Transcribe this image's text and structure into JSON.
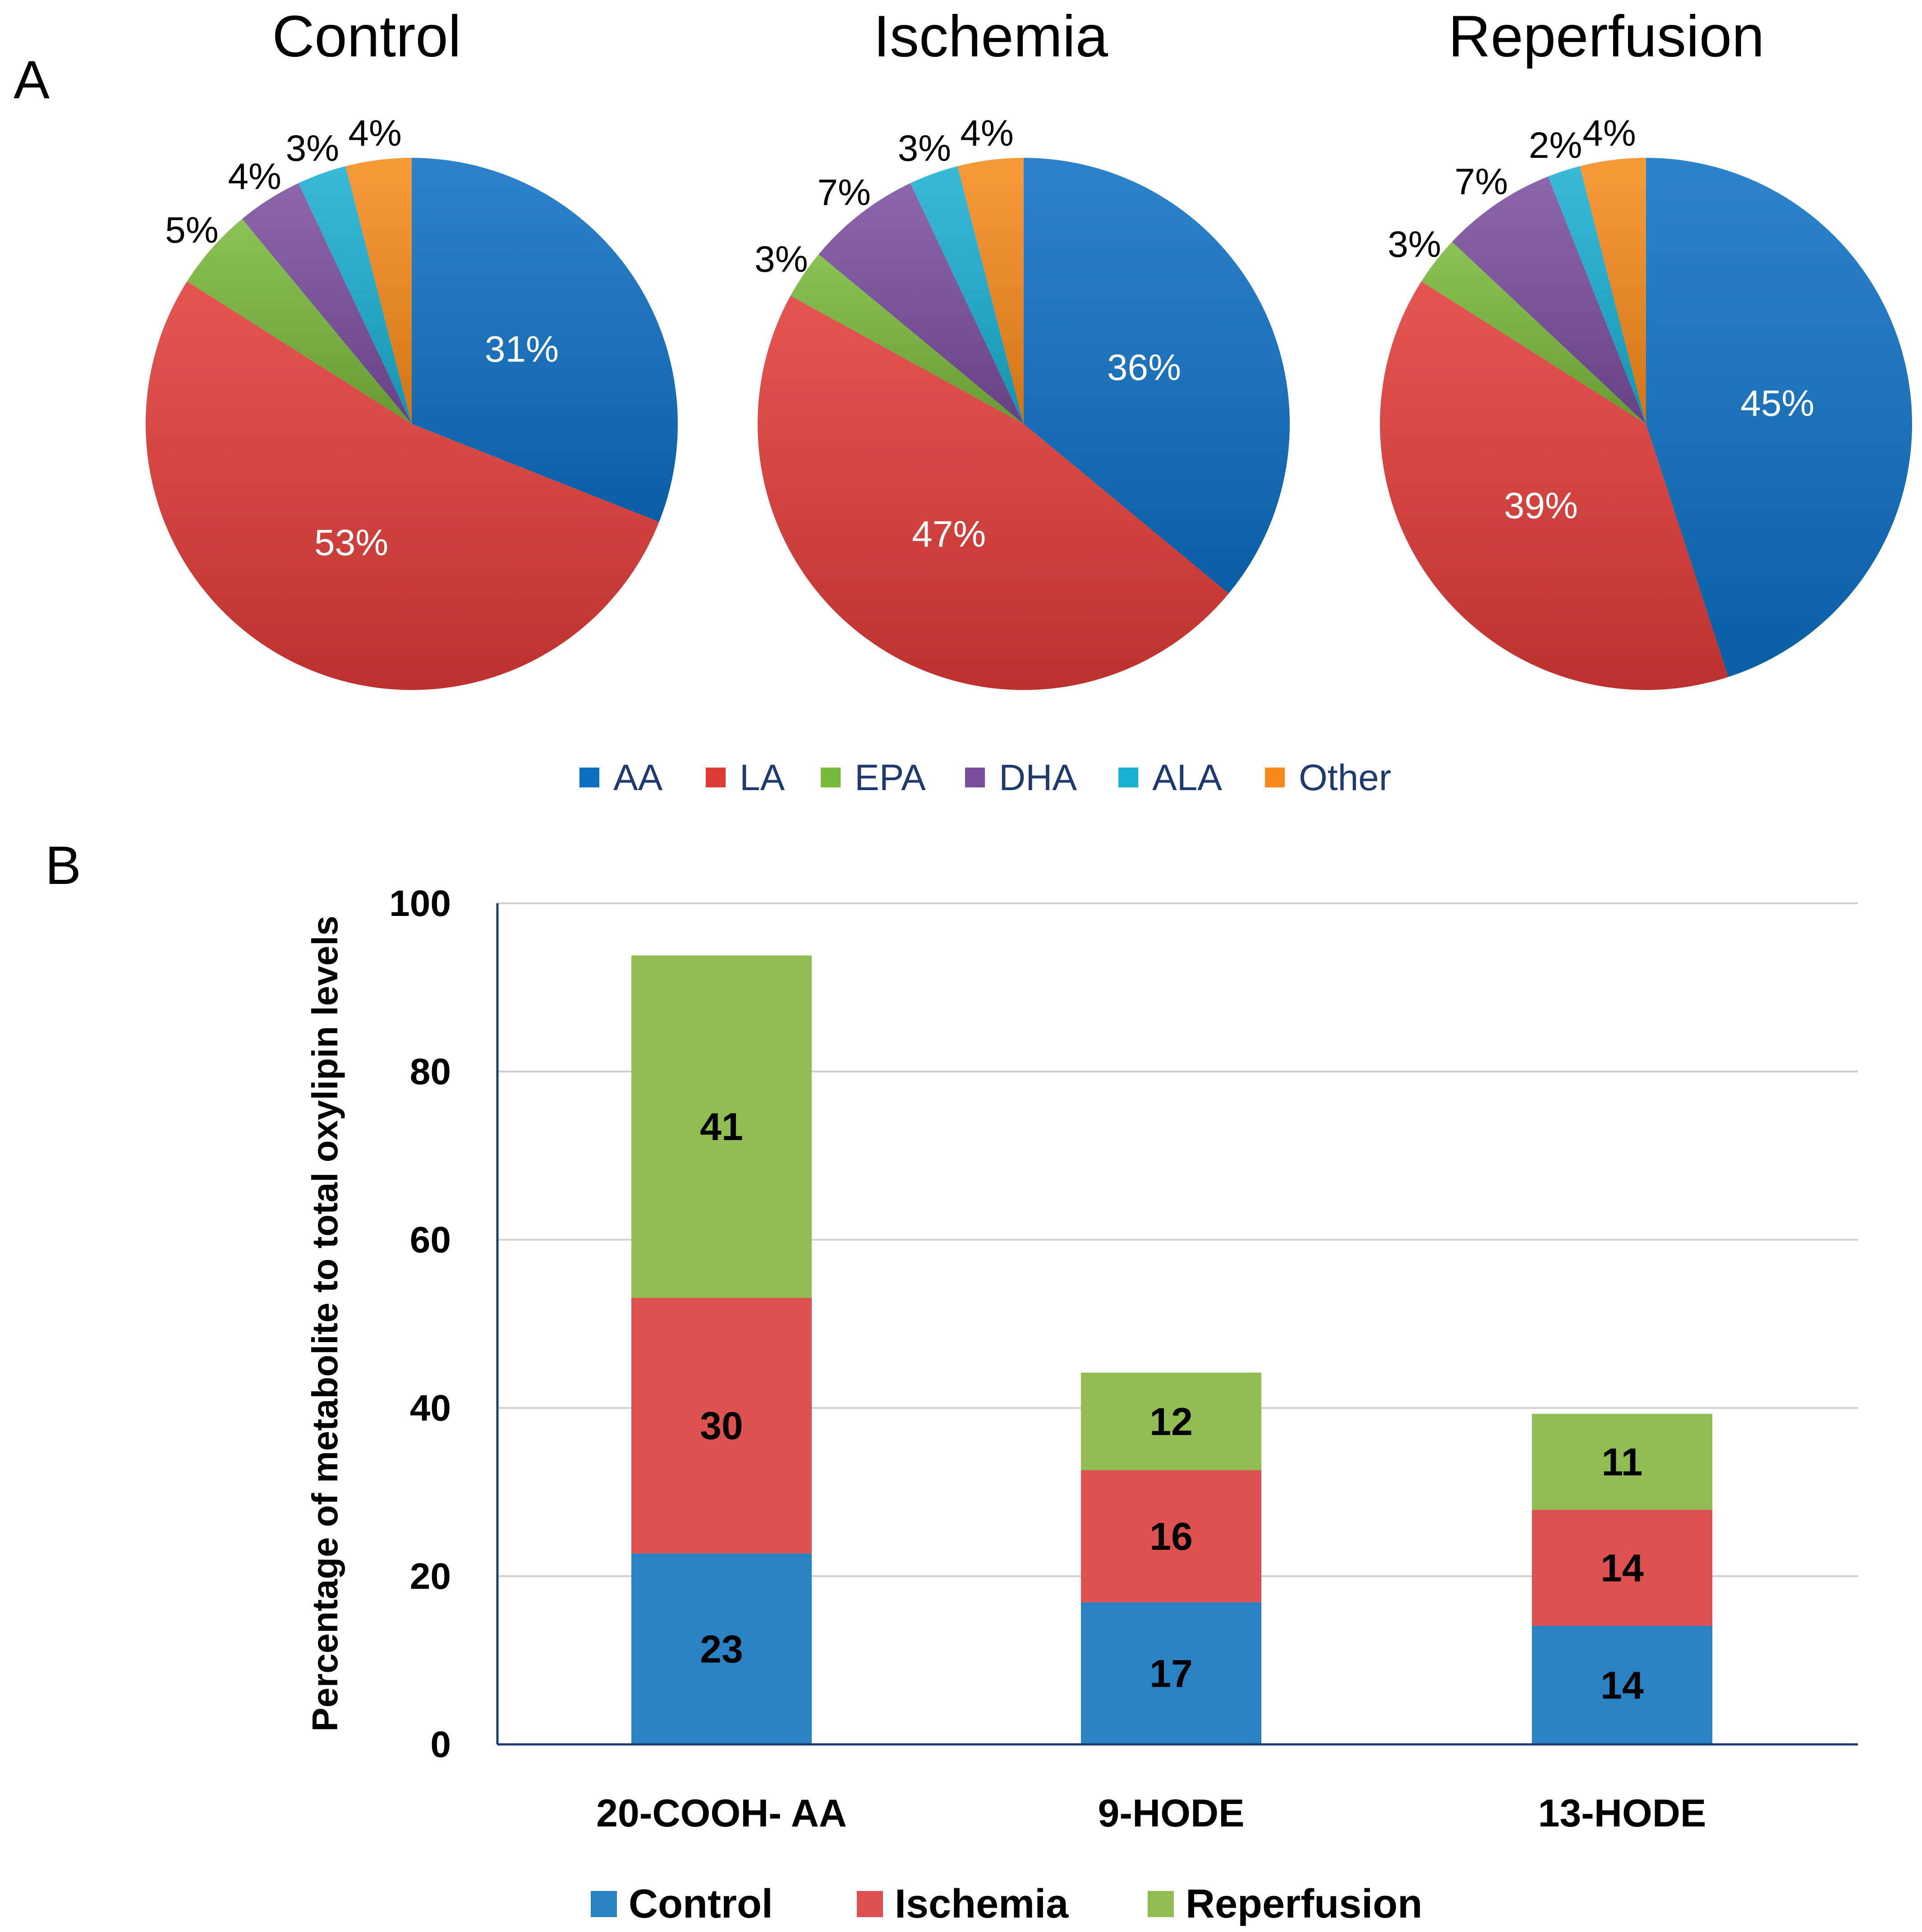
{
  "panel_labels": {
    "a": "A",
    "b": "B"
  },
  "colors": {
    "AA": "#0b6fc2",
    "LA": "#e03a36",
    "EPA": "#78b83a",
    "DHA": "#7a4d9e",
    "ALA": "#18afd0",
    "Other": "#f88a1b",
    "control_bar": "#2a82c4",
    "ischemia_bar": "#dd5150",
    "reperfusion_bar": "#8fbd52",
    "legend_text_a": "#1f3a6e",
    "axis": "#1f3a6e",
    "grid": "#d0d0d0"
  },
  "legend_a": [
    {
      "key": "AA",
      "label": "AA"
    },
    {
      "key": "LA",
      "label": "LA"
    },
    {
      "key": "EPA",
      "label": "EPA"
    },
    {
      "key": "DHA",
      "label": "DHA"
    },
    {
      "key": "ALA",
      "label": "ALA"
    },
    {
      "key": "Other",
      "label": "Other"
    }
  ],
  "legend_b": [
    {
      "key": "control_bar",
      "label": "Control"
    },
    {
      "key": "ischemia_bar",
      "label": "Ischemia"
    },
    {
      "key": "reperfusion_bar",
      "label": "Reperfusion"
    }
  ],
  "chart_data": [
    {
      "type": "pie",
      "title": "Control",
      "slices": [
        {
          "label": "AA",
          "value": 31,
          "display": "31%"
        },
        {
          "label": "LA",
          "value": 53,
          "display": "53%"
        },
        {
          "label": "EPA",
          "value": 5,
          "display": "5%"
        },
        {
          "label": "DHA",
          "value": 4,
          "display": "4%"
        },
        {
          "label": "ALA",
          "value": 3,
          "display": "3%"
        },
        {
          "label": "Other",
          "value": 4,
          "display": "4%"
        }
      ]
    },
    {
      "type": "pie",
      "title": "Ischemia",
      "slices": [
        {
          "label": "AA",
          "value": 36,
          "display": "36%"
        },
        {
          "label": "LA",
          "value": 47,
          "display": "47%"
        },
        {
          "label": "EPA",
          "value": 3,
          "display": "3%"
        },
        {
          "label": "DHA",
          "value": 7,
          "display": "7%"
        },
        {
          "label": "ALA",
          "value": 3,
          "display": "3%"
        },
        {
          "label": "Other",
          "value": 4,
          "display": "4%"
        }
      ]
    },
    {
      "type": "pie",
      "title": "Reperfusion",
      "slices": [
        {
          "label": "AA",
          "value": 45,
          "display": "45%"
        },
        {
          "label": "LA",
          "value": 39,
          "display": "39%"
        },
        {
          "label": "EPA",
          "value": 3,
          "display": "3%"
        },
        {
          "label": "DHA",
          "value": 7,
          "display": "7%"
        },
        {
          "label": "ALA",
          "value": 2,
          "display": "2%"
        },
        {
          "label": "Other",
          "value": 4,
          "display": "4%"
        }
      ]
    },
    {
      "type": "bar",
      "stacked": true,
      "categories": [
        "20-COOH- AA",
        "9-HODE",
        "13-HODE"
      ],
      "series": [
        {
          "name": "Control",
          "color_key": "control_bar",
          "values": [
            22.7,
            16.9,
            14.1
          ],
          "labels": [
            "23",
            "17",
            "14"
          ]
        },
        {
          "name": "Ischemia",
          "color_key": "ischemia_bar",
          "values": [
            30.4,
            15.7,
            13.8
          ],
          "labels": [
            "30",
            "16",
            "14"
          ]
        },
        {
          "name": "Reperfusion",
          "color_key": "reperfusion_bar",
          "values": [
            40.7,
            11.6,
            11.4
          ],
          "labels": [
            "41",
            "12",
            "11"
          ]
        }
      ],
      "ylabel": "Percentage of metabolite to total oxylipin levels",
      "xlabel": "",
      "ylim": [
        0,
        100
      ],
      "yticks": [
        0,
        20,
        40,
        60,
        80,
        100
      ],
      "grid": true,
      "legend_position": "bottom"
    }
  ]
}
